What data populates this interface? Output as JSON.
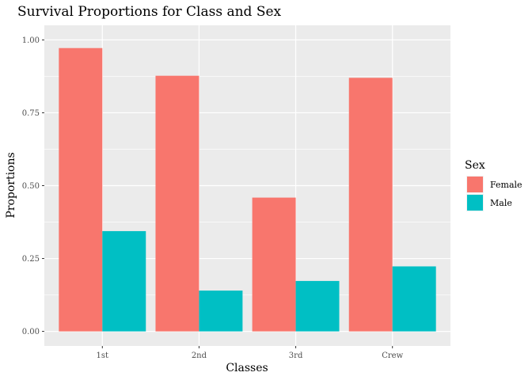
{
  "chart_data": {
    "type": "bar",
    "title": "Survival Proportions for Class and Sex",
    "xlabel": "Classes",
    "ylabel": "Proportions",
    "categories": [
      "1st",
      "2nd",
      "3rd",
      "Crew"
    ],
    "series": [
      {
        "name": "Female",
        "color": "#F8766D",
        "values": [
          0.972,
          0.877,
          0.459,
          0.87
        ]
      },
      {
        "name": "Male",
        "color": "#00BFC4",
        "values": [
          0.344,
          0.14,
          0.173,
          0.223
        ]
      }
    ],
    "ylim": [
      0,
      1.0
    ],
    "yticks": [
      0.0,
      0.25,
      0.5,
      0.75,
      1.0
    ],
    "ytick_labels": [
      "0.00",
      "0.25",
      "0.50",
      "0.75",
      "1.00"
    ],
    "legend": {
      "title": "Sex",
      "position": "right"
    },
    "grid": true,
    "panel_background": "#EBEBEB"
  }
}
